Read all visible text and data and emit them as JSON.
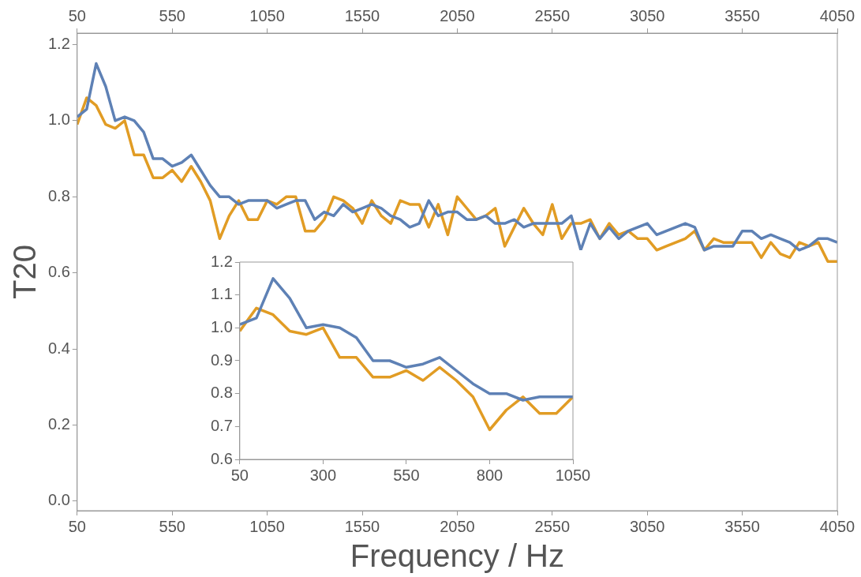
{
  "chart_data": [
    {
      "type": "line",
      "xlabel": "Frequency / Hz",
      "ylabel": "T20",
      "line_style": "solid",
      "marker": "none",
      "grid": false,
      "legend": false,
      "x": [
        50,
        100,
        150,
        200,
        250,
        300,
        350,
        400,
        450,
        500,
        550,
        600,
        650,
        700,
        750,
        800,
        850,
        900,
        950,
        1000,
        1050,
        1100,
        1150,
        1200,
        1250,
        1300,
        1350,
        1400,
        1450,
        1500,
        1550,
        1600,
        1650,
        1700,
        1750,
        1800,
        1850,
        1900,
        1950,
        2000,
        2050,
        2100,
        2150,
        2200,
        2250,
        2300,
        2350,
        2400,
        2450,
        2500,
        2550,
        2600,
        2650,
        2700,
        2750,
        2800,
        2850,
        2900,
        2950,
        3000,
        3050,
        3100,
        3150,
        3200,
        3250,
        3300,
        3350,
        3400,
        3450,
        3500,
        3550,
        3600,
        3650,
        3700,
        3750,
        3800,
        3850,
        3900,
        3950,
        4000,
        4050
      ],
      "xlim": [
        50,
        4050
      ],
      "xticks": [
        50,
        550,
        1050,
        1550,
        2050,
        2550,
        3050,
        3550,
        4050
      ],
      "x2lim": [
        50,
        4050
      ],
      "x2ticks": [
        50,
        550,
        1050,
        1550,
        2050,
        2550,
        3050,
        3550,
        4050
      ],
      "ylim": [
        -0.025,
        1.23
      ],
      "yticks": [
        {
          "value": 0,
          "label": "0.0"
        },
        {
          "value": 0.2,
          "label": "0.2"
        },
        {
          "value": 0.4,
          "label": "0.4"
        },
        {
          "value": 0.6,
          "label": "0.6"
        },
        {
          "value": 0.8,
          "label": "0.8"
        },
        {
          "value": 1,
          "label": "1.0"
        },
        {
          "value": 1.2,
          "label": "1.2"
        }
      ],
      "series": [
        {
          "color": "#5e81b5",
          "values": [
            1.01,
            1.03,
            1.15,
            1.09,
            1.0,
            1.01,
            1.0,
            0.97,
            0.9,
            0.9,
            0.88,
            0.89,
            0.91,
            0.87,
            0.83,
            0.8,
            0.8,
            0.78,
            0.79,
            0.79,
            0.79,
            0.77,
            0.78,
            0.79,
            0.79,
            0.74,
            0.76,
            0.75,
            0.78,
            0.76,
            0.77,
            0.78,
            0.77,
            0.75,
            0.74,
            0.72,
            0.73,
            0.79,
            0.75,
            0.76,
            0.76,
            0.74,
            0.74,
            0.75,
            0.73,
            0.73,
            0.74,
            0.72,
            0.73,
            0.73,
            0.73,
            0.73,
            0.75,
            0.66,
            0.73,
            0.69,
            0.72,
            0.69,
            0.71,
            0.72,
            0.73,
            0.7,
            0.71,
            0.72,
            0.73,
            0.72,
            0.66,
            0.67,
            0.67,
            0.67,
            0.71,
            0.71,
            0.69,
            0.7,
            0.69,
            0.68,
            0.66,
            0.67,
            0.69,
            0.69,
            0.68
          ]
        },
        {
          "color": "#e19c24",
          "values": [
            0.99,
            1.06,
            1.04,
            0.99,
            0.98,
            1.0,
            0.91,
            0.91,
            0.85,
            0.85,
            0.87,
            0.84,
            0.88,
            0.84,
            0.79,
            0.69,
            0.75,
            0.79,
            0.74,
            0.74,
            0.79,
            0.78,
            0.8,
            0.8,
            0.71,
            0.71,
            0.74,
            0.8,
            0.79,
            0.77,
            0.73,
            0.79,
            0.75,
            0.73,
            0.79,
            0.78,
            0.78,
            0.72,
            0.78,
            0.7,
            0.8,
            0.77,
            0.74,
            0.75,
            0.77,
            0.67,
            0.72,
            0.77,
            0.73,
            0.7,
            0.78,
            0.69,
            0.73,
            0.73,
            0.74,
            0.69,
            0.73,
            0.7,
            0.71,
            0.69,
            0.69,
            0.66,
            0.67,
            0.68,
            0.69,
            0.71,
            0.66,
            0.69,
            0.68,
            0.68,
            0.68,
            0.68,
            0.64,
            0.68,
            0.65,
            0.64,
            0.68,
            0.67,
            0.68,
            0.63,
            0.63
          ]
        }
      ]
    },
    {
      "type": "line",
      "line_style": "solid",
      "marker": "none",
      "grid": false,
      "legend": false,
      "x": [
        50,
        100,
        150,
        200,
        250,
        300,
        350,
        400,
        450,
        500,
        550,
        600,
        650,
        700,
        750,
        800,
        850,
        900,
        950,
        1000,
        1050
      ],
      "xlim": [
        50,
        1050
      ],
      "xticks": [
        50,
        300,
        550,
        800,
        1050
      ],
      "ylim": [
        0.6,
        1.2
      ],
      "yticks": [
        {
          "value": 0.6,
          "label": "0.6"
        },
        {
          "value": 0.7,
          "label": "0.7"
        },
        {
          "value": 0.8,
          "label": "0.8"
        },
        {
          "value": 0.9,
          "label": "0.9"
        },
        {
          "value": 1,
          "label": "1.0"
        },
        {
          "value": 1.1,
          "label": "1.1"
        },
        {
          "value": 1.2,
          "label": "1.2"
        }
      ],
      "series": [
        {
          "color": "#5e81b5",
          "values": [
            1.01,
            1.03,
            1.15,
            1.09,
            1.0,
            1.01,
            1.0,
            0.97,
            0.9,
            0.9,
            0.88,
            0.89,
            0.91,
            0.87,
            0.83,
            0.8,
            0.8,
            0.78,
            0.79,
            0.79,
            0.79
          ]
        },
        {
          "color": "#e19c24",
          "values": [
            0.99,
            1.06,
            1.04,
            0.99,
            0.98,
            1.0,
            0.91,
            0.91,
            0.85,
            0.85,
            0.87,
            0.84,
            0.88,
            0.84,
            0.79,
            0.69,
            0.75,
            0.79,
            0.74,
            0.74,
            0.79
          ]
        }
      ]
    }
  ]
}
